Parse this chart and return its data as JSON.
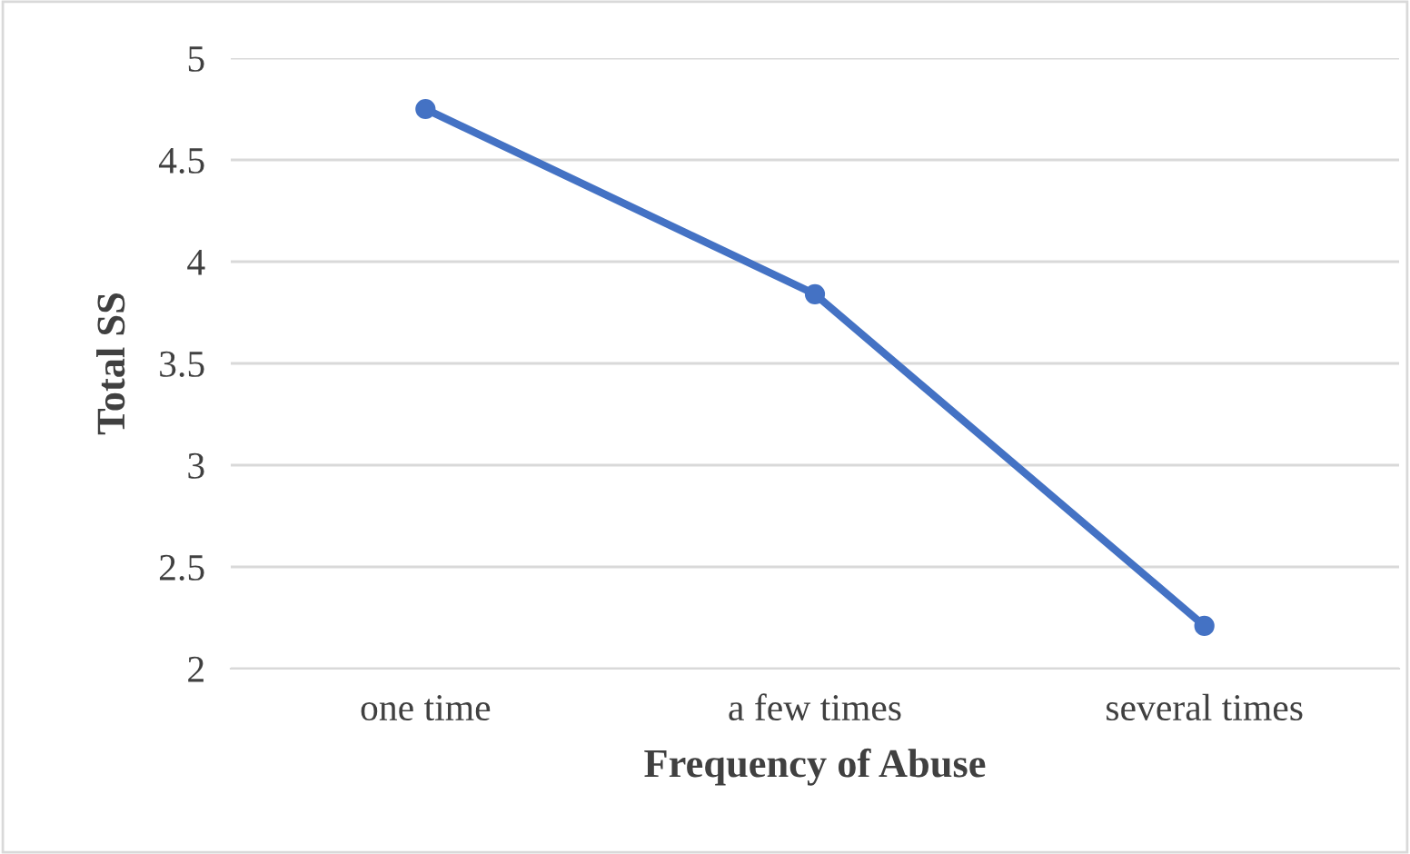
{
  "chart_data": {
    "type": "line",
    "xlabel": "Frequency of Abuse",
    "ylabel": "Total SS",
    "categories": [
      "one time",
      "a few times",
      "several times"
    ],
    "series": [
      {
        "color": "#4472c4",
        "values": [
          4.75,
          3.84,
          2.21
        ]
      }
    ],
    "ylim": [
      2,
      5
    ],
    "yticks": [
      2,
      {
        "value": 2.5,
        "label": "2.5"
      },
      3,
      {
        "value": 3.5,
        "label": "3.5"
      },
      4,
      {
        "value": 4.5,
        "label": "4.5"
      },
      5
    ],
    "grid": "y",
    "marker": "circle",
    "line_style": "solid",
    "legend": false
  }
}
